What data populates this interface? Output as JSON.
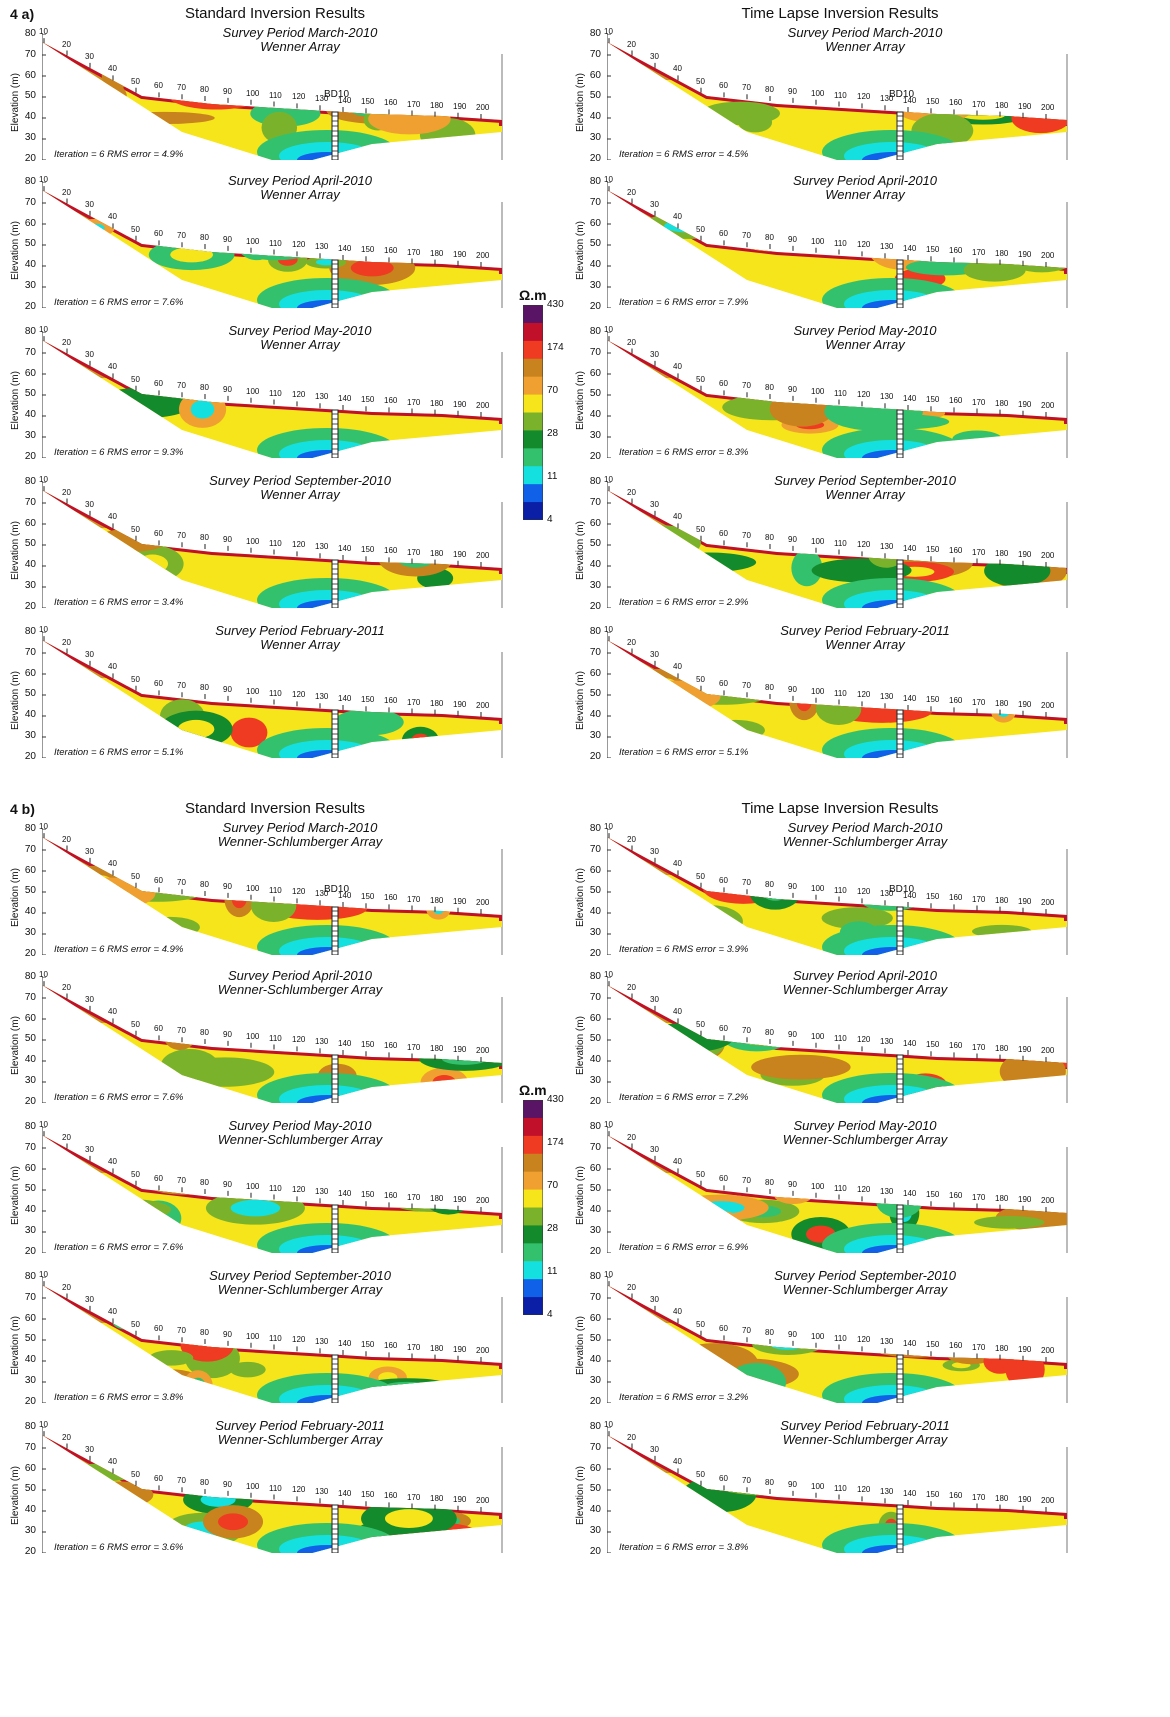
{
  "figures": [
    {
      "label": "4 a)",
      "standard_title": "Standard Inversion Results",
      "timelapse_title": "Time Lapse Inversion Results",
      "array": "Wenner Array",
      "panels": [
        {
          "period": "Survey Period  March-2010",
          "std_iter": "Iteration = 6   RMS error = 4.9%",
          "tl_iter": "Iteration = 6   RMS error = 4.5%"
        },
        {
          "period": "Survey Period  April-2010",
          "std_iter": "Iteration = 6   RMS error = 7.6%",
          "tl_iter": "Iteration = 6   RMS error = 7.9%"
        },
        {
          "period": "Survey Period  May-2010",
          "std_iter": "Iteration = 6   RMS error = 9.3%",
          "tl_iter": "Iteration = 6   RMS error = 8.3%"
        },
        {
          "period": "Survey Period  September-2010",
          "std_iter": "Iteration = 6   RMS error = 3.4%",
          "tl_iter": "Iteration = 6   RMS error = 2.9%"
        },
        {
          "period": "Survey Period  February-2011",
          "std_iter": "Iteration = 6   RMS error = 5.1%",
          "tl_iter": "Iteration = 6   RMS error = 5.1%"
        }
      ]
    },
    {
      "label": "4 b)",
      "standard_title": "Standard Inversion Results",
      "timelapse_title": "Time Lapse Inversion Results",
      "array": "Wenner-Schlumberger Array",
      "panels": [
        {
          "period": "Survey Period  March-2010",
          "std_iter": "Iteration = 6   RMS error = 4.9%",
          "tl_iter": "Iteration = 6   RMS error = 3.9%"
        },
        {
          "period": "Survey Period  April-2010",
          "std_iter": "Iteration = 6   RMS error = 7.6%",
          "tl_iter": "Iteration = 6   RMS error = 7.2%"
        },
        {
          "period": "Survey Period  May-2010",
          "std_iter": "Iteration = 6   RMS error = 7.6%",
          "tl_iter": "Iteration = 6   RMS error = 6.9%"
        },
        {
          "period": "Survey Period  September-2010",
          "std_iter": "Iteration = 6   RMS error = 3.8%",
          "tl_iter": "Iteration = 6   RMS error = 3.2%"
        },
        {
          "period": "Survey Period  February-2011",
          "std_iter": "Iteration = 6   RMS error = 3.6%",
          "tl_iter": "Iteration = 6   RMS error = 3.8%"
        }
      ]
    }
  ],
  "axis": {
    "ylabel": "Elevation (m)",
    "yticks": [
      "80",
      "70",
      "60",
      "50",
      "40",
      "30",
      "20"
    ],
    "xticks": [
      "10",
      "20",
      "30",
      "40",
      "50",
      "60",
      "70",
      "80",
      "90",
      "100",
      "110",
      "120",
      "130",
      "140",
      "150",
      "160",
      "170",
      "180",
      "190",
      "200"
    ]
  },
  "borehole_label": "BD10",
  "legend": {
    "unit": "Ω.m",
    "values": [
      "430",
      "174",
      "70",
      "28",
      "11",
      "4"
    ],
    "colors": [
      "#5a1466",
      "#c0102a",
      "#ef3b22",
      "#c8821e",
      "#f0a030",
      "#f5e51a",
      "#7ab32b",
      "#138a2c",
      "#33c16e",
      "#15e0e0",
      "#1060e8",
      "#0a1fa6"
    ]
  }
}
